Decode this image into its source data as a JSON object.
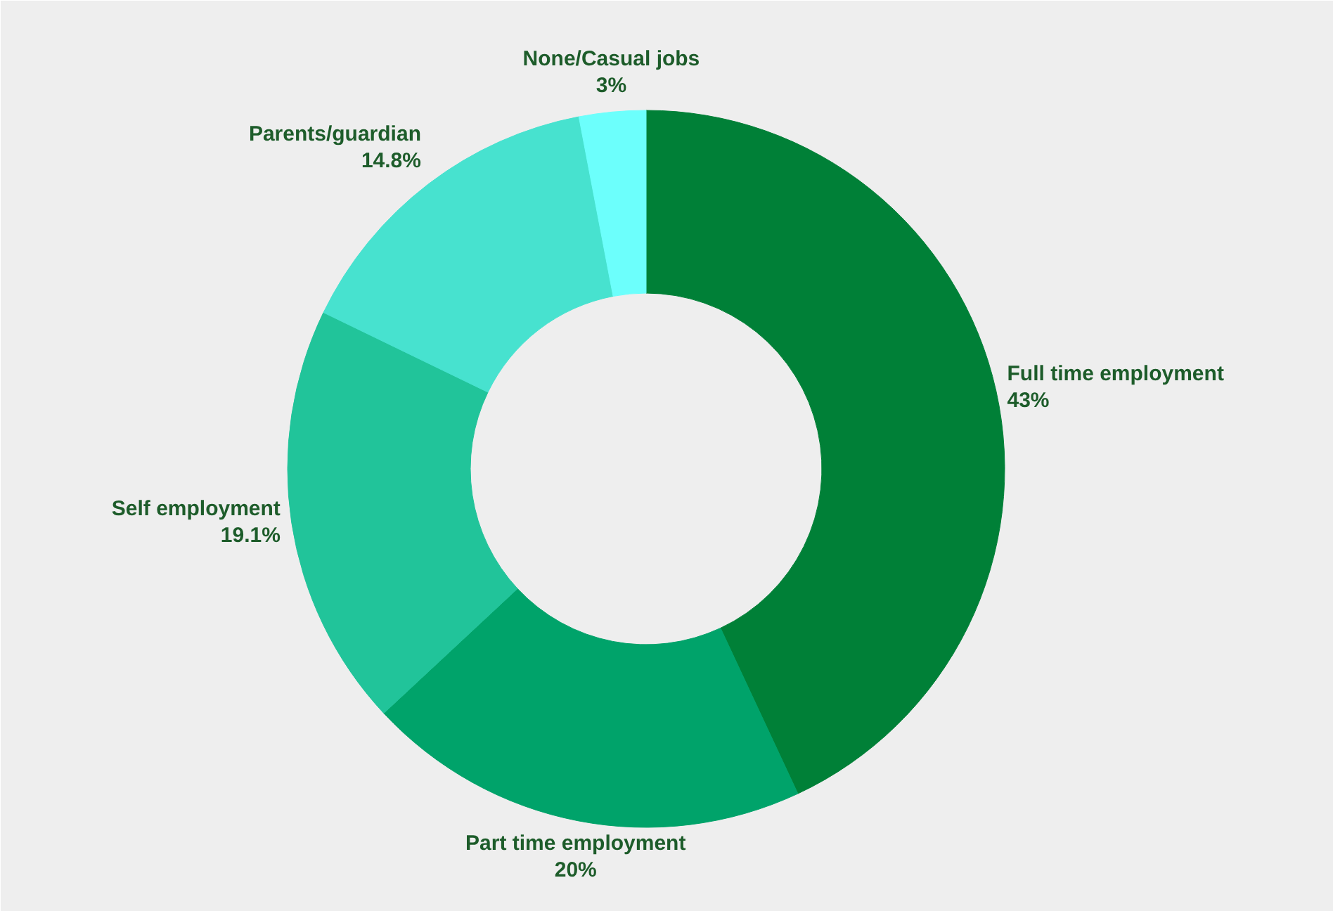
{
  "chart_data": {
    "type": "donut",
    "categories": [
      "Full time employment",
      "Part time employment",
      "Self employment",
      "Parents/guardian",
      "None/Casual jobs"
    ],
    "values": [
      43,
      20,
      19.1,
      14.8,
      3
    ],
    "colors": [
      "#008037",
      "#00a36a",
      "#21c49a",
      "#47e2cf",
      "#6cfffc"
    ],
    "value_labels": [
      "43%",
      "20%",
      "19.1%",
      "14.8%",
      "3%"
    ]
  }
}
